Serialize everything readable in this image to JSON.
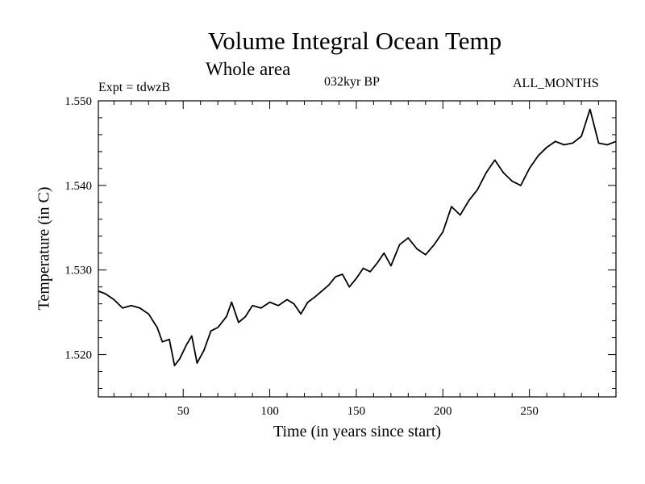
{
  "chart_data": {
    "type": "line",
    "title": "Volume Integral Ocean Temp",
    "subtitle": "Whole area",
    "annotations": {
      "experiment": "Expt = tdwzB",
      "period": "032kyr BP",
      "months": "ALL_MONTHS"
    },
    "xlabel": "Time (in years since start)",
    "ylabel": "Temperature (in C)",
    "xlim": [
      1,
      300
    ],
    "ylim": [
      1.515,
      1.55
    ],
    "x_ticks": [
      50,
      100,
      150,
      200,
      250
    ],
    "y_ticks": [
      1.52,
      1.53,
      1.54,
      1.55
    ],
    "y_tick_labels": [
      "1.520",
      "1.530",
      "1.540",
      "1.550"
    ],
    "grid": false,
    "series": [
      {
        "color": "#000000",
        "x": [
          1,
          5,
          10,
          15,
          20,
          25,
          30,
          35,
          38,
          42,
          45,
          48,
          52,
          55,
          58,
          62,
          66,
          70,
          75,
          78,
          82,
          86,
          90,
          95,
          100,
          105,
          110,
          114,
          118,
          122,
          126,
          130,
          134,
          138,
          142,
          146,
          150,
          154,
          158,
          162,
          166,
          170,
          175,
          180,
          185,
          190,
          195,
          200,
          205,
          210,
          215,
          220,
          225,
          230,
          235,
          240,
          245,
          250,
          255,
          260,
          265,
          270,
          275,
          280,
          285,
          290,
          295,
          300
        ],
        "y": [
          1.5275,
          1.5272,
          1.5265,
          1.5255,
          1.5258,
          1.5255,
          1.5248,
          1.5232,
          1.5215,
          1.5218,
          1.5187,
          1.5195,
          1.5212,
          1.5222,
          1.519,
          1.5205,
          1.5228,
          1.5232,
          1.5245,
          1.5262,
          1.5238,
          1.5245,
          1.5258,
          1.5255,
          1.5262,
          1.5258,
          1.5265,
          1.526,
          1.5248,
          1.5262,
          1.5268,
          1.5275,
          1.5282,
          1.5292,
          1.5295,
          1.528,
          1.529,
          1.5302,
          1.5298,
          1.5308,
          1.532,
          1.5305,
          1.533,
          1.5338,
          1.5325,
          1.5318,
          1.533,
          1.5345,
          1.5375,
          1.5365,
          1.5382,
          1.5395,
          1.5415,
          1.543,
          1.5415,
          1.5405,
          1.54,
          1.542,
          1.5435,
          1.5445,
          1.5452,
          1.5448,
          1.545,
          1.5458,
          1.549,
          1.545,
          1.5448,
          1.5452
        ]
      }
    ]
  }
}
